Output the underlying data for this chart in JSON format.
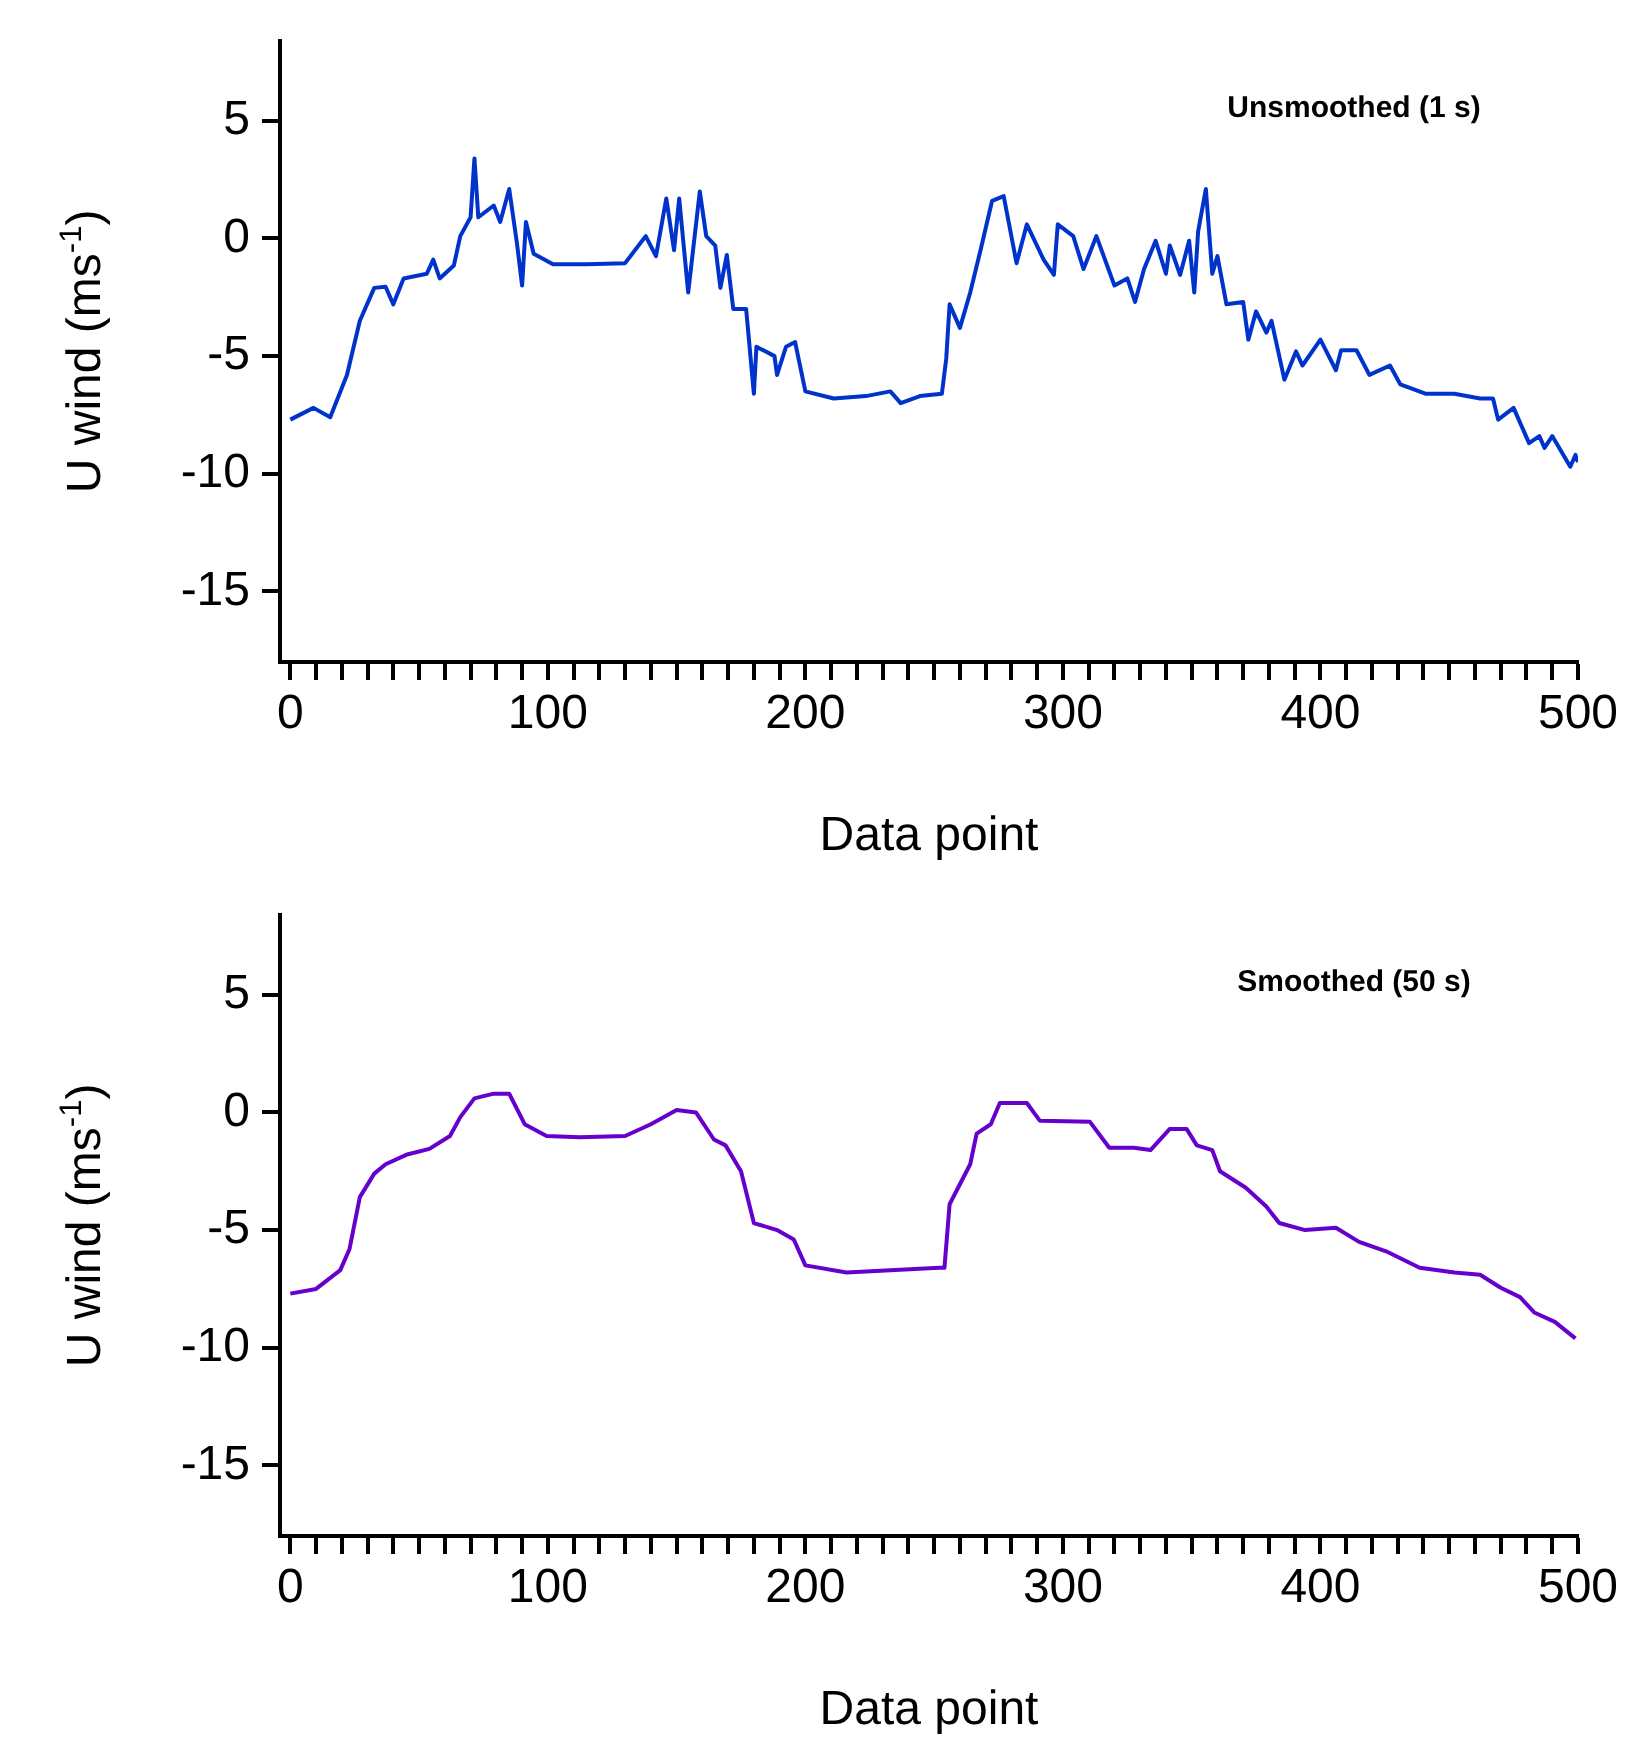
{
  "chart_data": [
    {
      "type": "line",
      "title": "Unsmoothed (1 s)",
      "xlabel": "Data point",
      "ylabel": "U wind (ms$^{-1}$)",
      "xlim": [
        -4,
        500
      ],
      "ylim": [
        -18,
        8.4
      ],
      "xticks": [
        0,
        {
          "value": 10,
          "label": null
        },
        {
          "value": 20,
          "label": null
        },
        {
          "value": 30,
          "label": null
        },
        {
          "value": 40,
          "label": null
        },
        {
          "value": 50,
          "label": null
        },
        {
          "value": 60,
          "label": null
        },
        {
          "value": 70,
          "label": null
        },
        {
          "value": 80,
          "label": null
        },
        {
          "value": 90,
          "label": null
        },
        100,
        {
          "value": 110,
          "label": null
        },
        {
          "value": 120,
          "label": null
        },
        {
          "value": 130,
          "label": null
        },
        {
          "value": 140,
          "label": null
        },
        {
          "value": 150,
          "label": null
        },
        {
          "value": 160,
          "label": null
        },
        {
          "value": 170,
          "label": null
        },
        {
          "value": 180,
          "label": null
        },
        {
          "value": 190,
          "label": null
        },
        200,
        {
          "value": 210,
          "label": null
        },
        {
          "value": 220,
          "label": null
        },
        {
          "value": 230,
          "label": null
        },
        {
          "value": 240,
          "label": null
        },
        {
          "value": 250,
          "label": null
        },
        {
          "value": 260,
          "label": null
        },
        {
          "value": 270,
          "label": null
        },
        {
          "value": 280,
          "label": null
        },
        {
          "value": 290,
          "label": null
        },
        300,
        {
          "value": 310,
          "label": null
        },
        {
          "value": 320,
          "label": null
        },
        {
          "value": 330,
          "label": null
        },
        {
          "value": 340,
          "label": null
        },
        {
          "value": 350,
          "label": null
        },
        {
          "value": 360,
          "label": null
        },
        {
          "value": 370,
          "label": null
        },
        {
          "value": 380,
          "label": null
        },
        {
          "value": 390,
          "label": null
        },
        400,
        {
          "value": 410,
          "label": null
        },
        {
          "value": 420,
          "label": null
        },
        {
          "value": 430,
          "label": null
        },
        {
          "value": 440,
          "label": null
        },
        {
          "value": 450,
          "label": null
        },
        {
          "value": 460,
          "label": null
        },
        {
          "value": 470,
          "label": null
        },
        {
          "value": 480,
          "label": null
        },
        {
          "value": 490,
          "label": null
        },
        500
      ],
      "yticks": [
        -15,
        -10,
        -5,
        0,
        5
      ],
      "marker": "none",
      "line_style": "solid",
      "series": [
        {
          "color": "#0033cc",
          "x": [
            0,
            9,
            15.5,
            22,
            27,
            32.6,
            37,
            40,
            44,
            53,
            55.5,
            58,
            63.5,
            66,
            70,
            71.5,
            73,
            79,
            81.5,
            85,
            88,
            90,
            91.5,
            94.5,
            102,
            115,
            130,
            138,
            142,
            146,
            149,
            151,
            154.5,
            159,
            161.5,
            165,
            167,
            169.5,
            172,
            177,
            180,
            181,
            188,
            189,
            192.5,
            196,
            200,
            211,
            223.5,
            233,
            237,
            244.5,
            253,
            254.7,
            256,
            260,
            264,
            268,
            272.5,
            277,
            282,
            286,
            292.5,
            296.5,
            298,
            304,
            308,
            313,
            320,
            325,
            328,
            331.5,
            336,
            340,
            341.5,
            345.5,
            349,
            351,
            352.5,
            355.5,
            358,
            360,
            363.5,
            370,
            372,
            375,
            379,
            381,
            386,
            390.5,
            393,
            400,
            406,
            408,
            414,
            419,
            427,
            431,
            441,
            452,
            462,
            467,
            469,
            475,
            481,
            485,
            487,
            490,
            497,
            499,
            500
          ],
          "values": [
            -7.7,
            -7.2,
            -7.6,
            -5.8,
            -3.5,
            -2.1,
            -2.05,
            -2.8,
            -1.7,
            -1.5,
            -0.9,
            -1.7,
            -1.15,
            0.1,
            0.9,
            3.4,
            0.9,
            1.4,
            0.7,
            2.1,
            -0.2,
            -2,
            0.7,
            -0.65,
            -1.1,
            -1.1,
            -1.05,
            0.1,
            -0.75,
            1.7,
            -0.5,
            1.7,
            -2.3,
            2,
            0.1,
            -0.3,
            -2.1,
            -0.7,
            -3,
            -3,
            -6.6,
            -4.6,
            -5,
            -5.8,
            -4.6,
            -4.4,
            -6.5,
            -6.8,
            -6.7,
            -6.5,
            -7,
            -6.7,
            -6.6,
            -5.1,
            -2.8,
            -3.8,
            -2.3,
            -0.5,
            1.6,
            1.8,
            -1.05,
            0.6,
            -0.9,
            -1.55,
            0.6,
            0.1,
            -1.3,
            0.1,
            -2,
            -1.7,
            -2.7,
            -1.3,
            -0.1,
            -1.5,
            -0.3,
            -1.55,
            -0.1,
            -2.3,
            0.3,
            2.1,
            -1.5,
            -0.75,
            -2.8,
            -2.7,
            -4.3,
            -3.1,
            -4,
            -3.5,
            -6,
            -4.8,
            -5.4,
            -4.3,
            -5.6,
            -4.75,
            -4.75,
            -5.8,
            -5.4,
            -6.2,
            -6.6,
            -6.6,
            -6.8,
            -6.8,
            -7.7,
            -7.2,
            -8.7,
            -8.4,
            -8.9,
            -8.4,
            -9.7,
            -9.2,
            -9.5
          ]
        }
      ]
    },
    {
      "type": "line",
      "title": "Smoothed (50 s)",
      "xlabel": "Data point",
      "ylabel": "U wind (ms$^{-1}$)",
      "xlim": [
        -4,
        500
      ],
      "ylim": [
        -18,
        8.4
      ],
      "xticks": [
        0,
        {
          "value": 10,
          "label": null
        },
        {
          "value": 20,
          "label": null
        },
        {
          "value": 30,
          "label": null
        },
        {
          "value": 40,
          "label": null
        },
        {
          "value": 50,
          "label": null
        },
        {
          "value": 60,
          "label": null
        },
        {
          "value": 70,
          "label": null
        },
        {
          "value": 80,
          "label": null
        },
        {
          "value": 90,
          "label": null
        },
        100,
        {
          "value": 110,
          "label": null
        },
        {
          "value": 120,
          "label": null
        },
        {
          "value": 130,
          "label": null
        },
        {
          "value": 140,
          "label": null
        },
        {
          "value": 150,
          "label": null
        },
        {
          "value": 160,
          "label": null
        },
        {
          "value": 170,
          "label": null
        },
        {
          "value": 180,
          "label": null
        },
        {
          "value": 190,
          "label": null
        },
        200,
        {
          "value": 210,
          "label": null
        },
        {
          "value": 220,
          "label": null
        },
        {
          "value": 230,
          "label": null
        },
        {
          "value": 240,
          "label": null
        },
        {
          "value": 250,
          "label": null
        },
        {
          "value": 260,
          "label": null
        },
        {
          "value": 270,
          "label": null
        },
        {
          "value": 280,
          "label": null
        },
        {
          "value": 290,
          "label": null
        },
        300,
        {
          "value": 310,
          "label": null
        },
        {
          "value": 320,
          "label": null
        },
        {
          "value": 330,
          "label": null
        },
        {
          "value": 340,
          "label": null
        },
        {
          "value": 350,
          "label": null
        },
        {
          "value": 360,
          "label": null
        },
        {
          "value": 370,
          "label": null
        },
        {
          "value": 380,
          "label": null
        },
        {
          "value": 390,
          "label": null
        },
        400,
        {
          "value": 410,
          "label": null
        },
        {
          "value": 420,
          "label": null
        },
        {
          "value": 430,
          "label": null
        },
        {
          "value": 440,
          "label": null
        },
        {
          "value": 450,
          "label": null
        },
        {
          "value": 460,
          "label": null
        },
        {
          "value": 470,
          "label": null
        },
        {
          "value": 480,
          "label": null
        },
        {
          "value": 490,
          "label": null
        },
        500
      ],
      "yticks": [
        -15,
        -10,
        -5,
        0,
        5
      ],
      "marker": "none",
      "line_style": "solid",
      "series": [
        {
          "color": "#6600cc",
          "x": [
            0,
            10,
            19.4,
            23,
            27,
            32.6,
            37,
            45,
            54,
            62,
            66,
            71.5,
            79,
            85,
            91,
            99.5,
            112.5,
            130,
            140,
            150,
            157.5,
            164.5,
            169,
            175,
            180,
            189,
            195.5,
            200,
            216,
            252,
            254,
            256,
            264,
            266.5,
            272,
            275.5,
            286,
            291,
            310.5,
            318,
            327.5,
            334,
            341.5,
            348,
            352,
            358,
            361,
            371,
            379,
            384,
            394,
            406,
            415,
            425.5,
            438.5,
            452,
            462,
            470,
            477.5,
            483,
            491,
            499
          ],
          "values": [
            -7.7,
            -7.5,
            -6.7,
            -5.8,
            -3.6,
            -2.6,
            -2.2,
            -1.8,
            -1.55,
            -1,
            -0.2,
            0.6,
            0.8,
            0.8,
            -0.5,
            -1,
            -1.05,
            -1,
            -0.5,
            0.1,
            0,
            -1.15,
            -1.4,
            -2.5,
            -4.7,
            -5,
            -5.4,
            -6.5,
            -6.8,
            -6.6,
            -6.6,
            -3.9,
            -2.2,
            -0.9,
            -0.5,
            0.4,
            0.4,
            -0.35,
            -0.4,
            -1.5,
            -1.5,
            -1.6,
            -0.7,
            -0.7,
            -1.4,
            -1.6,
            -2.5,
            -3.2,
            -4,
            -4.7,
            -5,
            -4.9,
            -5.5,
            -5.9,
            -6.6,
            -6.8,
            -6.9,
            -7.45,
            -7.85,
            -8.5,
            -8.9,
            -9.6
          ]
        }
      ]
    }
  ]
}
